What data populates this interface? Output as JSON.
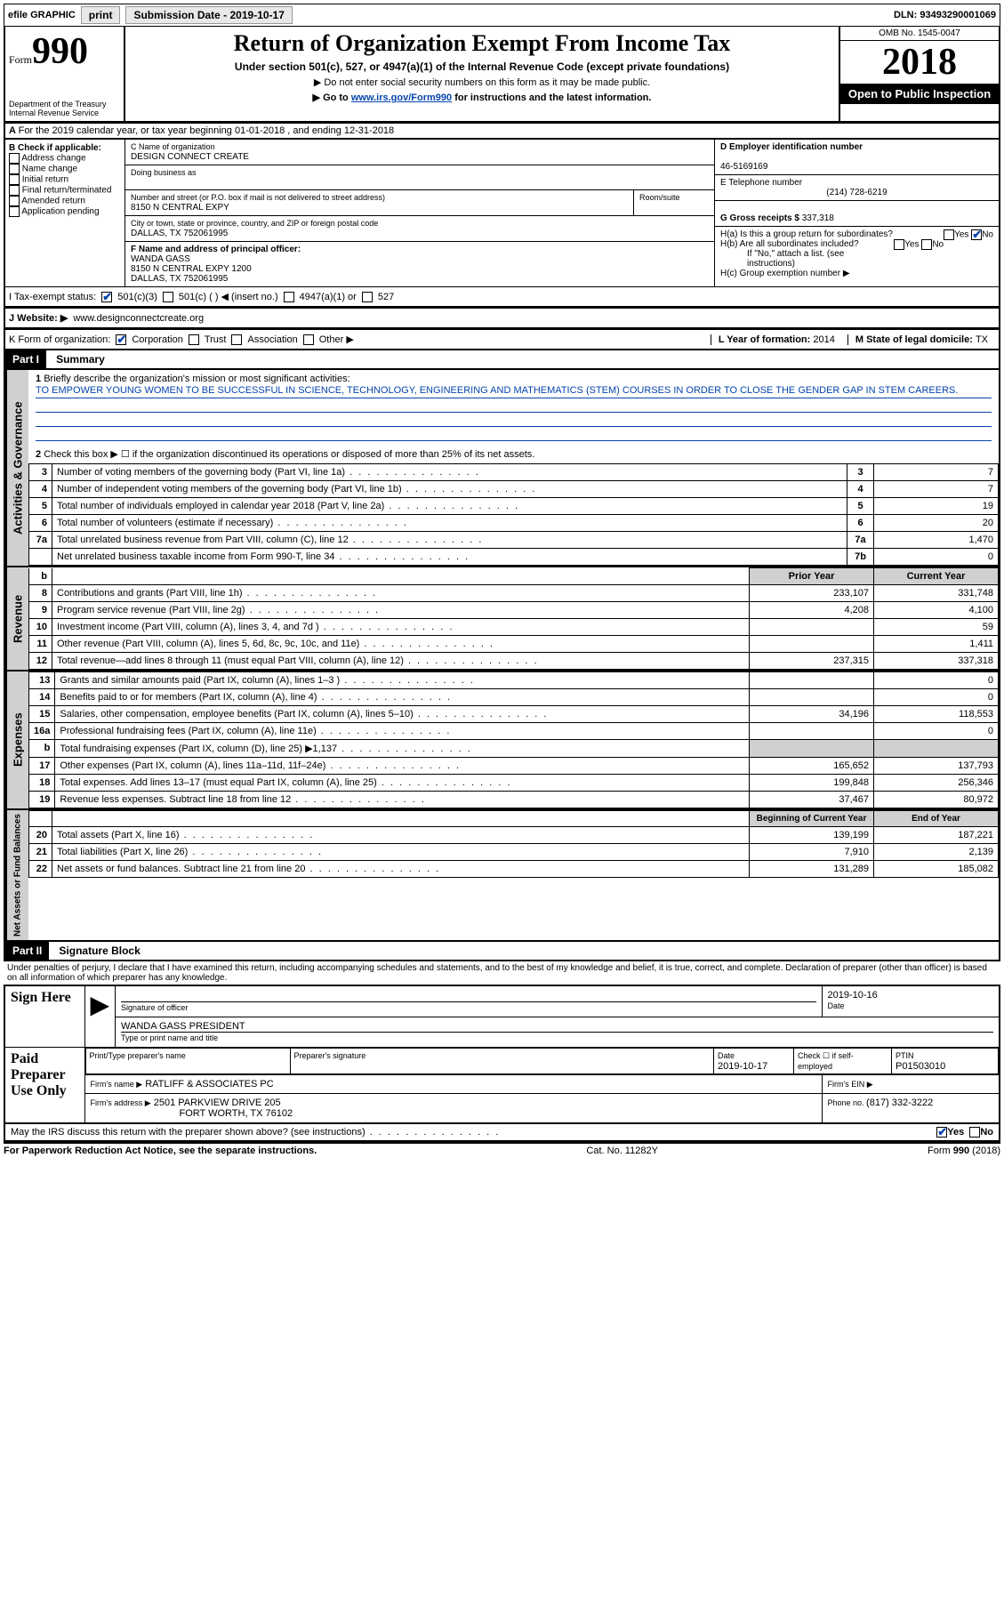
{
  "topbar": {
    "efile": "efile GRAPHIC",
    "print": "print",
    "sub_label": "Submission Date - ",
    "sub_date": "2019-10-17",
    "dln_label": "DLN: ",
    "dln": "93493290001069"
  },
  "header": {
    "form_word": "Form",
    "form_num": "990",
    "dept1": "Department of the Treasury",
    "dept2": "Internal Revenue Service",
    "title": "Return of Organization Exempt From Income Tax",
    "sub1": "Under section 501(c), 527, or 4947(a)(1) of the Internal Revenue Code (except private foundations)",
    "sub2": "▶ Do not enter social security numbers on this form as it may be made public.",
    "sub3a": "▶ Go to ",
    "sub3_link": "www.irs.gov/Form990",
    "sub3b": " for instructions and the latest information.",
    "omb": "OMB No. 1545-0047",
    "year": "2018",
    "open": "Open to Public Inspection"
  },
  "section_a": "For the 2019 calendar year, or tax year beginning 01-01-2018   , and ending 12-31-2018",
  "section_b": {
    "label": "B Check if applicable:",
    "items": [
      "Address change",
      "Name change",
      "Initial return",
      "Final return/terminated",
      "Amended return",
      "Application pending"
    ]
  },
  "section_c": {
    "c_label": "C Name of organization",
    "org": "DESIGN CONNECT CREATE",
    "dba_label": "Doing business as",
    "addr_label": "Number and street (or P.O. box if mail is not delivered to street address)",
    "room_label": "Room/suite",
    "addr": "8150 N CENTRAL EXPY",
    "city_label": "City or town, state or province, country, and ZIP or foreign postal code",
    "city": "DALLAS, TX  752061995",
    "f_label": "F  Name and address of principal officer:",
    "f_name": "WANDA GASS",
    "f_addr1": "8150 N CENTRAL EXPY 1200",
    "f_addr2": "DALLAS, TX  752061995"
  },
  "section_d": {
    "label": "D Employer identification number",
    "ein": "46-5169169",
    "e_label": "E Telephone number",
    "phone": "(214) 728-6219",
    "g_label": "G Gross receipts $ ",
    "g_val": "337,318"
  },
  "section_h": {
    "ha": "H(a)  Is this a group return for subordinates?",
    "hb": "H(b)  Are all subordinates included?",
    "hb_note": "If \"No,\" attach a list. (see instructions)",
    "hc": "H(c)  Group exemption number ▶"
  },
  "row_i": {
    "label": "I  Tax-exempt status:",
    "opts": [
      "501(c)(3)",
      "501(c) (  ) ◀ (insert no.)",
      "4947(a)(1) or",
      "527"
    ]
  },
  "row_j": {
    "label": "J  Website: ▶",
    "val": "www.designconnectcreate.org"
  },
  "row_k": {
    "label": "K Form of organization:",
    "opts": [
      "Corporation",
      "Trust",
      "Association",
      "Other ▶"
    ],
    "l_label": "L Year of formation: ",
    "l_val": "2014",
    "m_label": "M State of legal domicile: ",
    "m_val": "TX"
  },
  "part1": {
    "bar": "Part I",
    "title": "Summary"
  },
  "p1_1": {
    "num": "1",
    "label": "Briefly describe the organization's mission or most significant activities:",
    "text": "TO EMPOWER YOUNG WOMEN TO BE SUCCESSFUL IN SCIENCE, TECHNOLOGY, ENGINEERING AND MATHEMATICS (STEM) COURSES IN ORDER TO CLOSE THE GENDER GAP IN STEM CAREERS."
  },
  "p1_2": "Check this box ▶ ☐  if the organization discontinued its operations or disposed of more than 25% of its net assets.",
  "gov_rows": [
    {
      "n": "3",
      "d": "Number of voting members of the governing body (Part VI, line 1a)",
      "b": "3",
      "v": "7"
    },
    {
      "n": "4",
      "d": "Number of independent voting members of the governing body (Part VI, line 1b)",
      "b": "4",
      "v": "7"
    },
    {
      "n": "5",
      "d": "Total number of individuals employed in calendar year 2018 (Part V, line 2a)",
      "b": "5",
      "v": "19"
    },
    {
      "n": "6",
      "d": "Total number of volunteers (estimate if necessary)",
      "b": "6",
      "v": "20"
    },
    {
      "n": "7a",
      "d": "Total unrelated business revenue from Part VIII, column (C), line 12",
      "b": "7a",
      "v": "1,470"
    },
    {
      "n": "",
      "d": "Net unrelated business taxable income from Form 990-T, line 34",
      "b": "7b",
      "v": "0"
    }
  ],
  "rev_hdr": {
    "py": "Prior Year",
    "cy": "Current Year"
  },
  "rev_rows": [
    {
      "n": "8",
      "d": "Contributions and grants (Part VIII, line 1h)",
      "py": "233,107",
      "cy": "331,748"
    },
    {
      "n": "9",
      "d": "Program service revenue (Part VIII, line 2g)",
      "py": "4,208",
      "cy": "4,100"
    },
    {
      "n": "10",
      "d": "Investment income (Part VIII, column (A), lines 3, 4, and 7d )",
      "py": "",
      "cy": "59"
    },
    {
      "n": "11",
      "d": "Other revenue (Part VIII, column (A), lines 5, 6d, 8c, 9c, 10c, and 11e)",
      "py": "",
      "cy": "1,411"
    },
    {
      "n": "12",
      "d": "Total revenue—add lines 8 through 11 (must equal Part VIII, column (A), line 12)",
      "py": "237,315",
      "cy": "337,318"
    }
  ],
  "exp_rows": [
    {
      "n": "13",
      "d": "Grants and similar amounts paid (Part IX, column (A), lines 1–3 )",
      "py": "",
      "cy": "0"
    },
    {
      "n": "14",
      "d": "Benefits paid to or for members (Part IX, column (A), line 4)",
      "py": "",
      "cy": "0"
    },
    {
      "n": "15",
      "d": "Salaries, other compensation, employee benefits (Part IX, column (A), lines 5–10)",
      "py": "34,196",
      "cy": "118,553"
    },
    {
      "n": "16a",
      "d": "Professional fundraising fees (Part IX, column (A), line 11e)",
      "py": "",
      "cy": "0"
    },
    {
      "n": "b",
      "d": "Total fundraising expenses (Part IX, column (D), line 25) ▶1,137",
      "py": "shade",
      "cy": "shade"
    },
    {
      "n": "17",
      "d": "Other expenses (Part IX, column (A), lines 11a–11d, 11f–24e)",
      "py": "165,652",
      "cy": "137,793"
    },
    {
      "n": "18",
      "d": "Total expenses. Add lines 13–17 (must equal Part IX, column (A), line 25)",
      "py": "199,848",
      "cy": "256,346"
    },
    {
      "n": "19",
      "d": "Revenue less expenses. Subtract line 18 from line 12",
      "py": "37,467",
      "cy": "80,972"
    }
  ],
  "net_hdr": {
    "py": "Beginning of Current Year",
    "cy": "End of Year"
  },
  "net_rows": [
    {
      "n": "20",
      "d": "Total assets (Part X, line 16)",
      "py": "139,199",
      "cy": "187,221"
    },
    {
      "n": "21",
      "d": "Total liabilities (Part X, line 26)",
      "py": "7,910",
      "cy": "2,139"
    },
    {
      "n": "22",
      "d": "Net assets or fund balances. Subtract line 21 from line 20",
      "py": "131,289",
      "cy": "185,082"
    }
  ],
  "part2": {
    "bar": "Part II",
    "title": "Signature Block"
  },
  "sig_decl": "Under penalties of perjury, I declare that I have examined this return, including accompanying schedules and statements, and to the best of my knowledge and belief, it is true, correct, and complete. Declaration of preparer (other than officer) is based on all information of which preparer has any knowledge.",
  "sign": {
    "here": "Sign Here",
    "sig_label": "Signature of officer",
    "date_label": "Date",
    "date": "2019-10-16",
    "name": "WANDA GASS PRESIDENT",
    "name_label": "Type or print name and title"
  },
  "prep": {
    "label": "Paid Preparer Use Only",
    "c1": "Print/Type preparer's name",
    "c2": "Preparer's signature",
    "c3": "Date",
    "c3v": "2019-10-17",
    "c4": "Check ☐ if self-employed",
    "c5": "PTIN",
    "c5v": "P01503010",
    "firm_label": "Firm's name   ▶",
    "firm": "RATLIFF & ASSOCIATES PC",
    "ein_label": "Firm's EIN ▶",
    "addr_label": "Firm's address ▶",
    "addr1": "2501 PARKVIEW DRIVE 205",
    "addr2": "FORT WORTH, TX  76102",
    "phone_label": "Phone no. ",
    "phone": "(817) 332-3222"
  },
  "discuss": "May the IRS discuss this return with the preparer shown above? (see instructions)",
  "footer": {
    "left": "For Paperwork Reduction Act Notice, see the separate instructions.",
    "mid": "Cat. No. 11282Y",
    "right": "Form 990 (2018)"
  },
  "vtabs": {
    "gov": "Activities & Governance",
    "rev": "Revenue",
    "exp": "Expenses",
    "net": "Net Assets or Fund Balances"
  }
}
